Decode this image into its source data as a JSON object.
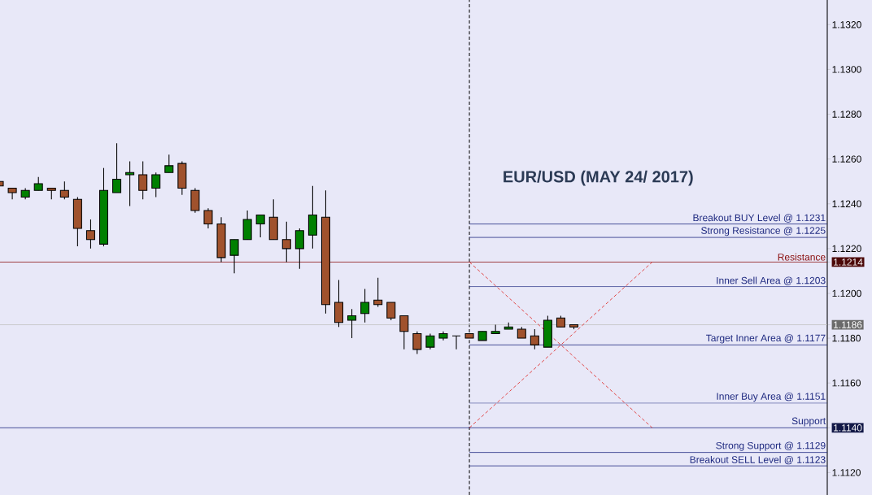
{
  "chart_data": {
    "type": "candlestick",
    "title": "EUR/USD (MAY 24/ 2017)",
    "categories": [
      null,
      null,
      null,
      null,
      null,
      null,
      null,
      null,
      null,
      null,
      null,
      null,
      null,
      null,
      null,
      null,
      null,
      null,
      null,
      null,
      null,
      null,
      null,
      null,
      null,
      null,
      null,
      null,
      null,
      null,
      null,
      null,
      null,
      null,
      null,
      null,
      null,
      null,
      null,
      null,
      null,
      null,
      null,
      null,
      null,
      null,
      null,
      null,
      null,
      null,
      null,
      null,
      null,
      null,
      null,
      null,
      null,
      null,
      null,
      null,
      null,
      null,
      null,
      null
    ],
    "ohlc": [
      [
        1.125,
        1.125,
        1.1248,
        1.1248
      ],
      [
        1.1247,
        1.1247,
        1.1242,
        1.1245
      ],
      [
        1.1243,
        1.1247,
        1.1242,
        1.1246
      ],
      [
        1.1246,
        1.1252,
        1.1246,
        1.1249
      ],
      [
        1.1247,
        1.1247,
        1.1242,
        1.1246
      ],
      [
        1.1246,
        1.125,
        1.1242,
        1.1243
      ],
      [
        1.1242,
        1.1243,
        1.1221,
        1.1229
      ],
      [
        1.1228,
        1.1233,
        1.122,
        1.1224
      ],
      [
        1.1222,
        1.1256,
        1.1221,
        1.1246
      ],
      [
        1.1245,
        1.1267,
        1.1245,
        1.1251
      ],
      [
        1.1253,
        1.1259,
        1.1239,
        1.1254
      ],
      [
        1.1253,
        1.1259,
        1.1242,
        1.1246
      ],
      [
        1.1247,
        1.1254,
        1.1243,
        1.1253
      ],
      [
        1.1254,
        1.1262,
        1.1254,
        1.1257
      ],
      [
        1.1258,
        1.1259,
        1.1244,
        1.1247
      ],
      [
        1.1246,
        1.1247,
        1.1236,
        1.1237
      ],
      [
        1.1237,
        1.1238,
        1.1229,
        1.1231
      ],
      [
        1.1231,
        1.1234,
        1.1214,
        1.1216
      ],
      [
        1.1217,
        1.1224,
        1.1209,
        1.1224
      ],
      [
        1.1224,
        1.1237,
        1.1224,
        1.1233
      ],
      [
        1.1231,
        1.1235,
        1.1225,
        1.1235
      ],
      [
        1.1234,
        1.1242,
        1.1224,
        1.1224
      ],
      [
        1.1224,
        1.1232,
        1.1214,
        1.122
      ],
      [
        1.122,
        1.1229,
        1.1211,
        1.1228
      ],
      [
        1.1226,
        1.1248,
        1.122,
        1.1235
      ],
      [
        1.1234,
        1.1246,
        1.1191,
        1.1195
      ],
      [
        1.1196,
        1.1206,
        1.1185,
        1.1187
      ],
      [
        1.1188,
        1.1193,
        1.118,
        1.119
      ],
      [
        1.1191,
        1.1202,
        1.1187,
        1.1196
      ],
      [
        1.1197,
        1.1207,
        1.1194,
        1.1195
      ],
      [
        1.1196,
        1.1196,
        1.1188,
        1.1189
      ],
      [
        1.119,
        1.119,
        1.1175,
        1.1183
      ],
      [
        1.1182,
        1.1183,
        1.1173,
        1.1175
      ],
      [
        1.1176,
        1.1182,
        1.1175,
        1.1181
      ],
      [
        1.118,
        1.1183,
        1.1179,
        1.1182
      ],
      [
        1.1181,
        1.1181,
        1.1175,
        1.1181
      ],
      [
        1.1182,
        1.1182,
        1.118,
        1.118
      ],
      [
        1.1179,
        1.1183,
        1.1179,
        1.1183
      ],
      [
        1.1182,
        1.1186,
        1.1182,
        1.1183
      ],
      [
        1.1184,
        1.1187,
        1.1184,
        1.1185
      ],
      [
        1.1184,
        1.1185,
        1.118,
        1.118
      ],
      [
        1.1181,
        1.1184,
        1.1175,
        1.1177
      ],
      [
        1.1176,
        1.119,
        1.1176,
        1.1188
      ],
      [
        1.1189,
        1.119,
        1.1185,
        1.1185
      ],
      [
        1.1186,
        1.1186,
        1.1184,
        1.1185
      ],
      null,
      null,
      null,
      null,
      null,
      null,
      null,
      null,
      null,
      null,
      null,
      null,
      null,
      null,
      null,
      null,
      null,
      null,
      null
    ],
    "colors": [
      "#a0522d",
      "#a0522d",
      "#008000",
      "#008000",
      "#a0522d",
      "#a0522d",
      "#a0522d",
      "#a0522d",
      "#008000",
      "#008000",
      "#008000",
      "#a0522d",
      "#008000",
      "#008000",
      "#a0522d",
      "#a0522d",
      "#a0522d",
      "#a0522d",
      "#008000",
      "#008000",
      "#008000",
      "#a0522d",
      "#a0522d",
      "#008000",
      "#008000",
      "#a0522d",
      "#a0522d",
      "#008000",
      "#008000",
      "#a0522d",
      "#a0522d",
      "#a0522d",
      "#a0522d",
      "#008000",
      "#008000",
      "#000000",
      "#a0522d",
      "#008000",
      "#008000",
      "#008000",
      "#a0522d",
      "#a0522d",
      "#008000",
      "#a0522d",
      "#a0522d",
      null,
      null,
      null,
      null,
      null,
      null,
      null,
      null,
      null,
      null,
      null,
      null,
      null,
      null,
      null,
      null,
      null,
      null,
      null
    ],
    "series": [
      {
        "type": "line",
        "values": [
          null,
          null,
          null,
          null,
          null,
          null,
          null,
          null,
          null,
          null,
          null,
          null,
          null,
          null,
          null,
          null,
          null,
          null,
          null,
          null,
          null,
          null,
          null,
          null,
          null,
          null,
          null,
          null,
          null,
          null,
          null,
          null,
          null,
          null,
          null,
          null,
          1.1214,
          null,
          null,
          null,
          null,
          null,
          null,
          null,
          null,
          null,
          null,
          null,
          null,
          null,
          1.114,
          null,
          null,
          null,
          null,
          null,
          null,
          null,
          null,
          null,
          null,
          null,
          null,
          null
        ],
        "color": "#e03a3a",
        "line_style": "dashed"
      },
      {
        "type": "line",
        "values": [
          null,
          null,
          null,
          null,
          null,
          null,
          null,
          null,
          null,
          null,
          null,
          null,
          null,
          null,
          null,
          null,
          null,
          null,
          null,
          null,
          null,
          null,
          null,
          null,
          null,
          null,
          null,
          null,
          null,
          null,
          null,
          null,
          null,
          null,
          null,
          null,
          1.114,
          null,
          null,
          null,
          null,
          null,
          null,
          null,
          null,
          null,
          null,
          null,
          null,
          null,
          1.1214,
          null,
          null,
          null,
          null,
          null,
          null,
          null,
          null,
          null,
          null,
          null,
          null,
          null
        ],
        "color": "#e03a3a",
        "line_style": "dashed"
      }
    ],
    "ylim": [
      1.111,
      1.1331
    ],
    "yticks": [
      {
        "value": 1.112,
        "label": "1.1120"
      },
      {
        "value": 1.114,
        "label": "1.1140"
      },
      {
        "value": 1.116,
        "label": "1.1160"
      },
      {
        "value": 1.118,
        "label": "1.1180"
      },
      {
        "value": 1.1186,
        "label": "1.1186"
      },
      {
        "value": 1.12,
        "label": "1.1200"
      },
      {
        "value": 1.1214,
        "label": "1.1214"
      },
      {
        "value": 1.122,
        "label": "1.1220"
      },
      {
        "value": 1.124,
        "label": "1.1240"
      },
      {
        "value": 1.126,
        "label": "1.1260"
      },
      {
        "value": 1.128,
        "label": "1.1280"
      },
      {
        "value": 1.13,
        "label": "1.1300"
      },
      {
        "value": 1.132,
        "label": "1.1320"
      }
    ],
    "ref_lines": [
      {
        "axis": "y",
        "value": 1.1231,
        "label": "Breakout BUY Level @ 1.1231",
        "color": "#1f2a80"
      },
      {
        "axis": "y",
        "value": 1.1225,
        "label": "Strong Resistance @  1.1225",
        "color": "#1f2a80"
      },
      {
        "axis": "y",
        "value": 1.1214,
        "label": "Resistance",
        "color": "#8b1010"
      },
      {
        "axis": "y",
        "value": 1.1203,
        "label": "Inner Sell Area @ 1.1203",
        "color": "#1f2a80"
      },
      {
        "axis": "y",
        "value": 1.1186,
        "color": "#c0c0c0"
      },
      {
        "axis": "y",
        "value": 1.1177,
        "label": "Target Inner Area @ 1.1177",
        "color": "#1f2a80"
      },
      {
        "axis": "y",
        "value": 1.1151,
        "label": "Inner Buy Area  @ 1.1151",
        "color": "#1f2a80"
      },
      {
        "axis": "y",
        "value": 1.114,
        "label": "Support",
        "color": "#1f2a80"
      },
      {
        "axis": "y",
        "value": 1.1129,
        "label": "Strong Support  @  1.1129",
        "color": "#1f2a80"
      },
      {
        "axis": "y",
        "value": 1.1123,
        "label": "Breakout SELL Level  @ 1.1123",
        "color": "#1f2a80"
      }
    ]
  }
}
